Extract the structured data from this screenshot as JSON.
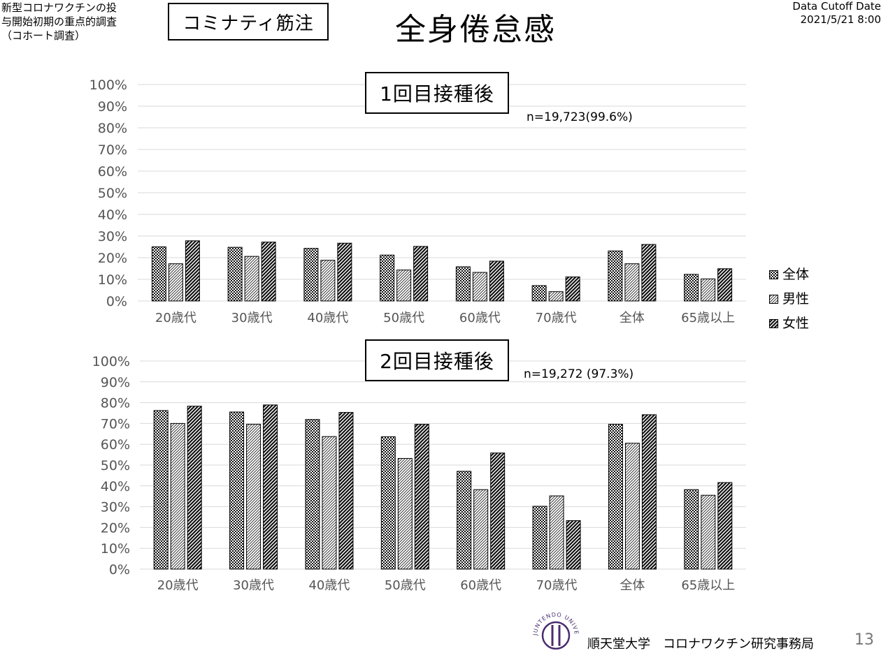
{
  "header": {
    "study_line1": "新型コロナワクチンの投",
    "study_line2": "与開始初期の重点的調査",
    "study_line3": "（コホート調査）",
    "badge": "コミナティ筋注",
    "title": "全身倦怠感",
    "cutoff_line1": "Data Cutoff Date",
    "cutoff_line2": "2021/5/21 8:00"
  },
  "legend": {
    "items": [
      "全体",
      "男性",
      "女性"
    ]
  },
  "footer": {
    "org": "順天堂大学　コロナワクチン研究事務局",
    "page": "13",
    "logo_text": "JUNTENDO UNIVERSITY"
  },
  "colors": {
    "grid": "#d9d9d9",
    "axis_text": "#555555",
    "bar_stroke": "#000000"
  },
  "chart_data": [
    {
      "type": "bar",
      "title": "1回目接種後",
      "annotation": "n=19,723(99.6%)",
      "categories": [
        "20歳代",
        "30歳代",
        "40歳代",
        "50歳代",
        "60歳代",
        "70歳代",
        "全体",
        "65歳以上"
      ],
      "series": [
        {
          "name": "全体",
          "values": [
            25,
            24.8,
            24.3,
            21.2,
            15.8,
            7.1,
            23.1,
            12.3
          ]
        },
        {
          "name": "男性",
          "values": [
            17.2,
            20.6,
            18.8,
            14.3,
            13.2,
            4.3,
            17.2,
            10.2
          ]
        },
        {
          "name": "女性",
          "values": [
            27.8,
            27.2,
            26.7,
            25.2,
            18.4,
            11.1,
            26.1,
            14.9
          ]
        }
      ],
      "y_ticks": [
        "0%",
        "10%",
        "20%",
        "30%",
        "40%",
        "50%",
        "60%",
        "70%",
        "80%",
        "90%",
        "100%"
      ],
      "ylim": [
        0,
        100
      ],
      "grid": true
    },
    {
      "type": "bar",
      "title": "2回目接種後",
      "annotation": "n=19,272 (97.3%)",
      "categories": [
        "20歳代",
        "30歳代",
        "40歳代",
        "50歳代",
        "60歳代",
        "70歳代",
        "全体",
        "65歳以上"
      ],
      "series": [
        {
          "name": "全体",
          "values": [
            76.2,
            75.5,
            71.9,
            63.6,
            47.0,
            30.2,
            69.6,
            38.2
          ]
        },
        {
          "name": "男性",
          "values": [
            70.0,
            69.6,
            63.7,
            53.2,
            38.2,
            35.2,
            60.5,
            35.5
          ]
        },
        {
          "name": "女性",
          "values": [
            78.3,
            78.9,
            75.3,
            69.6,
            55.8,
            23.3,
            74.2,
            41.6
          ]
        }
      ],
      "y_ticks": [
        "0%",
        "10%",
        "20%",
        "30%",
        "40%",
        "50%",
        "60%",
        "70%",
        "80%",
        "90%",
        "100%"
      ],
      "ylim": [
        0,
        100
      ],
      "grid": true
    }
  ]
}
